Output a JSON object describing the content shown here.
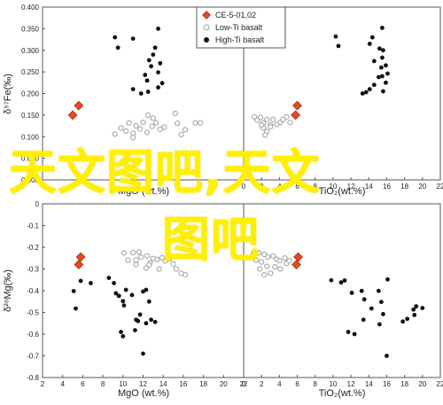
{
  "chart_data": [
    {
      "type": "scatter",
      "panel": "top-left",
      "xlabel": "MgO (wt.%)",
      "ylabel": "δ⁵⁷Fe(‰)",
      "xlim": [
        2,
        22
      ],
      "ylim": [
        0,
        0.4
      ],
      "xticks": [],
      "yticks": [
        "0.000",
        "0.050",
        "0.100",
        "0.150",
        "0.200",
        "0.250",
        "0.300",
        "0.350",
        "0.400"
      ],
      "series": [
        {
          "name": "CE-5-01,02",
          "marker": "diamond",
          "color": "#e8471e",
          "points": [
            [
              5.6,
              0.172
            ],
            [
              5.0,
              0.15
            ]
          ]
        },
        {
          "name": "Low-Ti basalt",
          "marker": "circle-open",
          "color": "#a0a0a0",
          "points": [
            [
              9.2,
              0.106
            ],
            [
              9.8,
              0.12
            ],
            [
              10.3,
              0.113
            ],
            [
              10.6,
              0.132
            ],
            [
              11.0,
              0.108
            ],
            [
              11.3,
              0.125
            ],
            [
              11.7,
              0.118
            ],
            [
              12.0,
              0.133
            ],
            [
              12.4,
              0.11
            ],
            [
              12.9,
              0.124
            ],
            [
              13.3,
              0.132
            ],
            [
              13.7,
              0.117
            ],
            [
              14.1,
              0.122
            ],
            [
              11.0,
              0.098
            ],
            [
              13.0,
              0.143
            ],
            [
              12.5,
              0.15
            ],
            [
              15.2,
              0.154
            ],
            [
              15.4,
              0.131
            ],
            [
              15.8,
              0.105
            ],
            [
              16.2,
              0.116
            ],
            [
              17.2,
              0.132
            ],
            [
              17.7,
              0.132
            ]
          ]
        },
        {
          "name": "High-Ti basalt",
          "marker": "circle",
          "color": "#111111",
          "points": [
            [
              9.2,
              0.33
            ],
            [
              9.5,
              0.306
            ],
            [
              11.0,
              0.327
            ],
            [
              13.5,
              0.35
            ],
            [
              13.2,
              0.306
            ],
            [
              13.0,
              0.29
            ],
            [
              12.6,
              0.277
            ],
            [
              12.8,
              0.263
            ],
            [
              12.2,
              0.243
            ],
            [
              12.4,
              0.23
            ],
            [
              12.5,
              0.204
            ],
            [
              11.8,
              0.2
            ],
            [
              11.0,
              0.21
            ],
            [
              13.5,
              0.249
            ],
            [
              13.7,
              0.27
            ],
            [
              13.9,
              0.224
            ],
            [
              13.5,
              0.214
            ]
          ]
        }
      ]
    },
    {
      "type": "scatter",
      "panel": "top-right",
      "xlabel": "TiO₂(wt.%)",
      "ylabel": "",
      "xlim": [
        0,
        22
      ],
      "ylim": [
        0,
        0.4
      ],
      "xticks": [
        "0",
        "2",
        "4",
        "6",
        "8",
        "10",
        "12",
        "14",
        "16",
        "18",
        "20",
        "22"
      ],
      "yticks": [],
      "series": [
        {
          "name": "CE-5-01,02",
          "marker": "diamond",
          "color": "#e8471e",
          "points": [
            [
              6.0,
              0.172
            ],
            [
              5.8,
              0.15
            ]
          ]
        },
        {
          "name": "Low-Ti basalt",
          "marker": "circle-open",
          "color": "#a0a0a0",
          "points": [
            [
              1.2,
              0.146
            ],
            [
              1.5,
              0.138
            ],
            [
              1.9,
              0.145
            ],
            [
              2.2,
              0.132
            ],
            [
              2.6,
              0.14
            ],
            [
              3.0,
              0.127
            ],
            [
              3.3,
              0.14
            ],
            [
              3.7,
              0.128
            ],
            [
              4.1,
              0.133
            ],
            [
              2.6,
              0.112
            ],
            [
              2.4,
              0.104
            ],
            [
              3.0,
              0.123
            ],
            [
              2.2,
              0.12
            ],
            [
              2.0,
              0.127
            ],
            [
              4.4,
              0.14
            ],
            [
              4.8,
              0.146
            ],
            [
              5.2,
              0.133
            ]
          ]
        },
        {
          "name": "High-Ti basalt",
          "marker": "circle",
          "color": "#111111",
          "points": [
            [
              10.3,
              0.332
            ],
            [
              10.6,
              0.31
            ],
            [
              14.4,
              0.33
            ],
            [
              14.1,
              0.315
            ],
            [
              15.5,
              0.352
            ],
            [
              15.2,
              0.304
            ],
            [
              15.6,
              0.3
            ],
            [
              15.5,
              0.283
            ],
            [
              14.6,
              0.275
            ],
            [
              15.4,
              0.26
            ],
            [
              15.9,
              0.265
            ],
            [
              16.1,
              0.246
            ],
            [
              15.5,
              0.24
            ],
            [
              15.1,
              0.238
            ],
            [
              14.6,
              0.22
            ],
            [
              13.7,
              0.203
            ],
            [
              13.3,
              0.2
            ],
            [
              14.1,
              0.21
            ],
            [
              15.9,
              0.225
            ],
            [
              15.6,
              0.205
            ]
          ]
        }
      ]
    },
    {
      "type": "scatter",
      "panel": "bottom-left",
      "xlabel": "MgO (wt.%)",
      "ylabel": "δ²⁶Mg(‰)",
      "xlim": [
        2,
        22
      ],
      "ylim": [
        -0.8,
        0
      ],
      "xticks": [
        "2",
        "4",
        "6",
        "8",
        "10",
        "12",
        "14",
        "16",
        "18",
        "20",
        "22"
      ],
      "yticks": [
        "0",
        "-0.1",
        "-0.2",
        "-0.3",
        "-0.4",
        "-0.5",
        "-0.6",
        "-0.7",
        "-0.8"
      ],
      "series": [
        {
          "name": "CE-5-01,02",
          "marker": "diamond",
          "color": "#e8471e",
          "points": [
            [
              5.8,
              -0.245
            ],
            [
              5.6,
              -0.28
            ]
          ]
        },
        {
          "name": "Low-Ti basalt",
          "marker": "circle-open",
          "color": "#a0a0a0",
          "points": [
            [
              10.1,
              -0.226
            ],
            [
              11.0,
              -0.225
            ],
            [
              11.6,
              -0.222
            ],
            [
              11.8,
              -0.245
            ],
            [
              12.4,
              -0.24
            ],
            [
              13.0,
              -0.252
            ],
            [
              13.4,
              -0.256
            ],
            [
              12.7,
              -0.272
            ],
            [
              14.6,
              -0.254
            ],
            [
              15.0,
              -0.277
            ],
            [
              15.3,
              -0.3
            ],
            [
              13.6,
              -0.3
            ],
            [
              12.6,
              -0.281
            ],
            [
              14.2,
              -0.263
            ],
            [
              13.9,
              -0.248
            ],
            [
              11.3,
              -0.258
            ],
            [
              10.5,
              -0.26
            ],
            [
              11.3,
              -0.28
            ],
            [
              12.3,
              -0.296
            ],
            [
              15.8,
              -0.32
            ],
            [
              16.2,
              -0.327
            ]
          ]
        },
        {
          "name": "High-Ti basalt",
          "marker": "circle",
          "color": "#111111",
          "points": [
            [
              5.1,
              -0.402
            ],
            [
              5.3,
              -0.482
            ],
            [
              5.8,
              -0.355
            ],
            [
              6.8,
              -0.365
            ],
            [
              8.6,
              -0.341
            ],
            [
              9.1,
              -0.365
            ],
            [
              9.3,
              -0.412
            ],
            [
              9.6,
              -0.424
            ],
            [
              10.0,
              -0.448
            ],
            [
              10.3,
              -0.396
            ],
            [
              10.1,
              -0.468
            ],
            [
              10.9,
              -0.42
            ],
            [
              11.7,
              -0.51
            ],
            [
              11.5,
              -0.54
            ],
            [
              11.3,
              -0.534
            ],
            [
              12.3,
              -0.55
            ],
            [
              12.6,
              -0.45
            ],
            [
              12.3,
              -0.396
            ],
            [
              12.8,
              -0.534
            ],
            [
              12.0,
              -0.404
            ],
            [
              9.8,
              -0.59
            ],
            [
              10.0,
              -0.61
            ],
            [
              11.2,
              -0.582
            ],
            [
              13.2,
              -0.544
            ],
            [
              12.0,
              -0.69
            ]
          ]
        }
      ]
    },
    {
      "type": "scatter",
      "panel": "bottom-right",
      "xlabel": "TiO₂(wt.%)",
      "ylabel": "",
      "xlim": [
        0,
        22
      ],
      "ylim": [
        -0.8,
        0
      ],
      "xticks": [
        "0",
        "2",
        "4",
        "6",
        "8",
        "10",
        "12",
        "14",
        "16",
        "18",
        "20",
        "22"
      ],
      "yticks": [],
      "series": [
        {
          "name": "CE-5-01,02",
          "marker": "diamond",
          "color": "#e8471e",
          "points": [
            [
              6.1,
              -0.245
            ],
            [
              5.9,
              -0.28
            ]
          ]
        },
        {
          "name": "Low-Ti basalt",
          "marker": "circle-open",
          "color": "#a0a0a0",
          "points": [
            [
              1.1,
              -0.227
            ],
            [
              1.7,
              -0.226
            ],
            [
              2.3,
              -0.233
            ],
            [
              2.7,
              -0.245
            ],
            [
              3.3,
              -0.24
            ],
            [
              3.7,
              -0.255
            ],
            [
              4.0,
              -0.262
            ],
            [
              1.4,
              -0.26
            ],
            [
              2.0,
              -0.268
            ],
            [
              2.6,
              -0.288
            ],
            [
              3.5,
              -0.29
            ],
            [
              4.1,
              -0.3
            ],
            [
              3.0,
              -0.32
            ],
            [
              2.3,
              -0.327
            ],
            [
              4.6,
              -0.25
            ],
            [
              4.8,
              -0.274
            ],
            [
              5.1,
              -0.262
            ],
            [
              1.8,
              -0.3
            ]
          ]
        },
        {
          "name": "High-Ti basalt",
          "marker": "circle",
          "color": "#111111",
          "points": [
            [
              9.8,
              -0.352
            ],
            [
              10.9,
              -0.362
            ],
            [
              11.3,
              -0.353
            ],
            [
              12.1,
              -0.41
            ],
            [
              13.2,
              -0.401
            ],
            [
              13.5,
              -0.44
            ],
            [
              14.3,
              -0.482
            ],
            [
              15.1,
              -0.401
            ],
            [
              15.4,
              -0.452
            ],
            [
              16.1,
              -0.348
            ],
            [
              15.6,
              -0.508
            ],
            [
              11.7,
              -0.59
            ],
            [
              12.4,
              -0.6
            ],
            [
              13.4,
              -0.534
            ],
            [
              15.2,
              -0.555
            ],
            [
              17.8,
              -0.542
            ],
            [
              18.3,
              -0.53
            ],
            [
              19.0,
              -0.487
            ],
            [
              19.3,
              -0.472
            ],
            [
              19.1,
              -0.512
            ],
            [
              20.0,
              -0.48
            ],
            [
              16.0,
              -0.7
            ]
          ]
        }
      ]
    }
  ],
  "legend": {
    "items": [
      {
        "label": "CE-5-01,02",
        "marker": "diamond",
        "color": "#e8471e"
      },
      {
        "label": "Low-Ti basalt",
        "marker": "circle-open",
        "color": "#a0a0a0"
      },
      {
        "label": "High-Ti basalt",
        "marker": "circle",
        "color": "#111111"
      }
    ]
  },
  "watermark": {
    "line1": "天文图吧,天文",
    "line2": "图吧"
  }
}
